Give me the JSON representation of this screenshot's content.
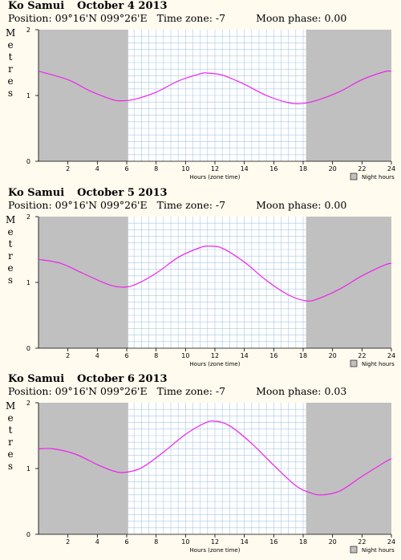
{
  "colors": {
    "background": "#fffbef",
    "night": "#c0c0c0",
    "grid": "#a9c9e6",
    "tide": "#ee22ee",
    "day": "#ffffff"
  },
  "chart_data": [
    {
      "type": "line",
      "location": "Ko Samui",
      "date": "October 4 2013",
      "position": "Position: 09°16'N 099°26'E",
      "time_zone": "Time zone: -7",
      "moon_phase": "Moon phase: 0.00",
      "ylabel": "Metres",
      "xlabel": "Hours (zone time)",
      "legend": "Night hours",
      "xlim": [
        0,
        24
      ],
      "ylim": [
        0,
        2
      ],
      "x_ticks": [
        "2",
        "4",
        "6",
        "8",
        "10",
        "12",
        "14",
        "16",
        "18",
        "20",
        "22",
        "24"
      ],
      "y_ticks": [
        "0",
        "1",
        "2"
      ],
      "night_periods": [
        [
          0,
          6.1
        ],
        [
          18.2,
          24
        ]
      ],
      "series": [
        {
          "x": [
            0,
            2,
            3.5,
            5,
            5.6,
            6.5,
            8,
            9.5,
            11,
            11.5,
            12.5,
            14,
            15.5,
            17,
            18,
            19,
            20.5,
            22,
            23.5,
            24
          ],
          "y": [
            1.37,
            1.24,
            1.07,
            0.94,
            0.92,
            0.94,
            1.05,
            1.22,
            1.33,
            1.34,
            1.31,
            1.17,
            1.0,
            0.89,
            0.88,
            0.93,
            1.06,
            1.24,
            1.36,
            1.37
          ]
        }
      ]
    },
    {
      "type": "line",
      "location": "Ko Samui",
      "date": "October 5 2013",
      "position": "Position: 09°16'N 099°26'E",
      "time_zone": "Time zone: -7",
      "moon_phase": "Moon phase: 0.00",
      "ylabel": "Metres",
      "xlabel": "Hours (zone time)",
      "legend": "Night hours",
      "xlim": [
        0,
        24
      ],
      "ylim": [
        0,
        2
      ],
      "x_ticks": [
        "2",
        "4",
        "6",
        "8",
        "10",
        "12",
        "14",
        "16",
        "18",
        "20",
        "22",
        "24"
      ],
      "y_ticks": [
        "0",
        "1",
        "2"
      ],
      "night_periods": [
        [
          0,
          6.1
        ],
        [
          18.2,
          24
        ]
      ],
      "series": [
        {
          "x": [
            0,
            1.5,
            3,
            4.5,
            5.5,
            6.5,
            8,
            9.5,
            11,
            11.7,
            12.5,
            14,
            15.5,
            17,
            18.2,
            19,
            20.5,
            22,
            23.5,
            24
          ],
          "y": [
            1.35,
            1.29,
            1.14,
            0.99,
            0.93,
            0.96,
            1.14,
            1.38,
            1.53,
            1.55,
            1.52,
            1.31,
            1.03,
            0.81,
            0.72,
            0.75,
            0.9,
            1.1,
            1.26,
            1.29
          ]
        }
      ]
    },
    {
      "type": "line",
      "location": "Ko Samui",
      "date": "October 6 2013",
      "position": "Position: 09°16'N 099°26'E",
      "time_zone": "Time zone: -7",
      "moon_phase": "Moon phase: 0.03",
      "ylabel": "Metres",
      "xlabel": "Hours (zone time)",
      "legend": "Night hours",
      "xlim": [
        0,
        24
      ],
      "ylim": [
        0,
        2
      ],
      "x_ticks": [
        "2",
        "4",
        "6",
        "8",
        "10",
        "12",
        "14",
        "16",
        "18",
        "20",
        "22",
        "24"
      ],
      "y_ticks": [
        "0",
        "1",
        "2"
      ],
      "night_periods": [
        [
          0,
          6.1
        ],
        [
          18.2,
          24
        ]
      ],
      "series": [
        {
          "x": [
            0,
            1,
            2.5,
            4,
            5,
            5.8,
            7,
            8.5,
            10,
            11.3,
            12,
            13,
            14.5,
            16,
            17.5,
            18.5,
            19.3,
            20.5,
            22,
            23.5,
            24
          ],
          "y": [
            1.3,
            1.3,
            1.22,
            1.06,
            0.97,
            0.94,
            1.01,
            1.25,
            1.52,
            1.69,
            1.72,
            1.65,
            1.38,
            1.05,
            0.74,
            0.63,
            0.6,
            0.66,
            0.88,
            1.09,
            1.15
          ]
        }
      ]
    }
  ]
}
